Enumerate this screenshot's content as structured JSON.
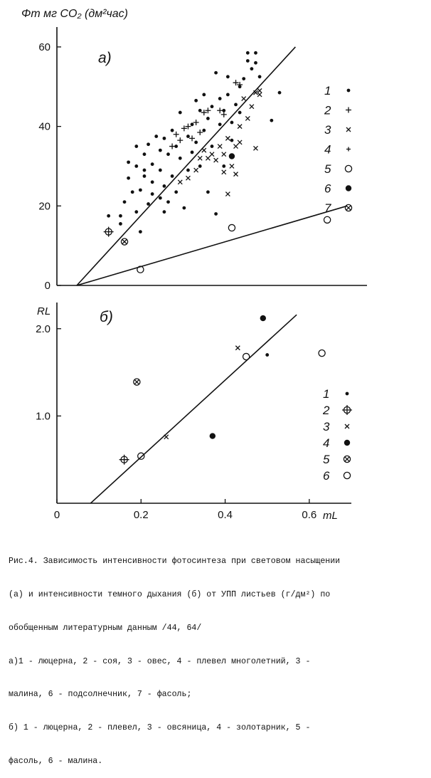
{
  "chart_data": [
    {
      "type": "scatter",
      "panel_label": "а)",
      "ylabel": "Φт мг CO₂ (дм²час)",
      "xlim": [
        0,
        0.78
      ],
      "ylim": [
        0,
        65
      ],
      "y_ticks": [
        "0",
        "20",
        "40",
        "60"
      ],
      "grid": false,
      "legend_position": "right",
      "series": [
        {
          "name": "1",
          "marker": "dot",
          "points": [
            [
              0.13,
              17.5
            ],
            [
              0.16,
              17.5
            ],
            [
              0.16,
              15.5
            ],
            [
              0.17,
              21
            ],
            [
              0.18,
              27
            ],
            [
              0.18,
              31
            ],
            [
              0.19,
              23.5
            ],
            [
              0.2,
              35
            ],
            [
              0.2,
              30
            ],
            [
              0.2,
              18.5
            ],
            [
              0.21,
              24
            ],
            [
              0.21,
              13.5
            ],
            [
              0.22,
              33
            ],
            [
              0.22,
              29
            ],
            [
              0.22,
              27.5
            ],
            [
              0.23,
              35.5
            ],
            [
              0.23,
              20.5
            ],
            [
              0.24,
              26
            ],
            [
              0.24,
              30.5
            ],
            [
              0.24,
              23
            ],
            [
              0.25,
              37.5
            ],
            [
              0.26,
              34
            ],
            [
              0.26,
              29
            ],
            [
              0.26,
              22
            ],
            [
              0.27,
              37
            ],
            [
              0.27,
              25
            ],
            [
              0.27,
              18.5
            ],
            [
              0.28,
              33
            ],
            [
              0.28,
              21
            ],
            [
              0.29,
              39
            ],
            [
              0.29,
              27.5
            ],
            [
              0.3,
              23.5
            ],
            [
              0.3,
              35
            ],
            [
              0.31,
              43.5
            ],
            [
              0.31,
              32
            ],
            [
              0.32,
              19.5
            ],
            [
              0.33,
              37.5
            ],
            [
              0.33,
              29
            ],
            [
              0.34,
              40.5
            ],
            [
              0.34,
              33.5
            ],
            [
              0.35,
              46.5
            ],
            [
              0.35,
              36
            ],
            [
              0.36,
              44
            ],
            [
              0.36,
              30
            ],
            [
              0.37,
              39
            ],
            [
              0.37,
              48
            ],
            [
              0.38,
              42
            ],
            [
              0.38,
              23.5
            ],
            [
              0.39,
              45
            ],
            [
              0.39,
              35
            ],
            [
              0.4,
              53.5
            ],
            [
              0.4,
              18
            ],
            [
              0.41,
              47
            ],
            [
              0.41,
              40.5
            ],
            [
              0.42,
              44
            ],
            [
              0.42,
              30
            ],
            [
              0.43,
              48
            ],
            [
              0.43,
              52.5
            ],
            [
              0.44,
              41
            ],
            [
              0.44,
              36.5
            ],
            [
              0.45,
              45.5
            ],
            [
              0.46,
              50
            ],
            [
              0.46,
              43.5
            ],
            [
              0.47,
              52
            ],
            [
              0.48,
              58.5
            ],
            [
              0.48,
              56.5
            ],
            [
              0.49,
              54.5
            ],
            [
              0.5,
              58.5
            ],
            [
              0.5,
              56
            ],
            [
              0.51,
              52.5
            ],
            [
              0.54,
              41.5
            ],
            [
              0.56,
              48.5
            ]
          ]
        },
        {
          "name": "2",
          "marker": "plus",
          "points": [
            [
              0.29,
              35
            ],
            [
              0.3,
              38
            ],
            [
              0.31,
              36.5
            ],
            [
              0.32,
              39.5
            ],
            [
              0.33,
              40
            ],
            [
              0.34,
              37
            ],
            [
              0.35,
              41
            ],
            [
              0.36,
              38.5
            ],
            [
              0.37,
              43.5
            ],
            [
              0.38,
              44
            ],
            [
              0.41,
              44
            ],
            [
              0.42,
              43
            ],
            [
              0.45,
              51
            ],
            [
              0.46,
              50.5
            ]
          ]
        },
        {
          "name": "3",
          "marker": "x",
          "points": [
            [
              0.31,
              26
            ],
            [
              0.33,
              27
            ],
            [
              0.35,
              29
            ],
            [
              0.36,
              32
            ],
            [
              0.37,
              34
            ],
            [
              0.38,
              32
            ],
            [
              0.39,
              33
            ],
            [
              0.4,
              31.5
            ],
            [
              0.41,
              35
            ],
            [
              0.42,
              28.5
            ],
            [
              0.42,
              33
            ],
            [
              0.43,
              37
            ],
            [
              0.44,
              30
            ],
            [
              0.45,
              28
            ],
            [
              0.45,
              35
            ],
            [
              0.46,
              36
            ],
            [
              0.47,
              47
            ],
            [
              0.48,
              42
            ],
            [
              0.49,
              45
            ],
            [
              0.5,
              48.5
            ],
            [
              0.51,
              49
            ],
            [
              0.51,
              48
            ],
            [
              0.43,
              23
            ],
            [
              0.46,
              40
            ],
            [
              0.5,
              34.5
            ]
          ]
        },
        {
          "name": "4",
          "marker": "cross-small",
          "points": []
        },
        {
          "name": "5",
          "marker": "open-circle",
          "points": [
            [
              0.21,
              4
            ],
            [
              0.44,
              14.5
            ],
            [
              0.68,
              16.5
            ]
          ]
        },
        {
          "name": "6",
          "marker": "filled-circle",
          "points": [
            [
              0.44,
              32.5
            ]
          ]
        },
        {
          "name": "7",
          "marker": "circle-x",
          "points": [
            [
              0.17,
              11
            ]
          ]
        },
        {
          "name": "",
          "marker": "circle-plus",
          "points": [
            [
              0.13,
              13.5
            ]
          ]
        }
      ],
      "lines": [
        {
          "from": [
            0.05,
            0
          ],
          "to": [
            0.6,
            60
          ]
        },
        {
          "from": [
            0.05,
            0
          ],
          "to": [
            0.73,
            20
          ]
        }
      ]
    },
    {
      "type": "scatter",
      "panel_label": "б)",
      "ylabel": "RL",
      "xlabel": "mL",
      "xlim": [
        0,
        0.7
      ],
      "ylim": [
        0,
        2.3
      ],
      "x_ticks": [
        "0",
        "0.2",
        "0.4",
        "0.6"
      ],
      "y_ticks": [
        "1.0",
        "2.0"
      ],
      "grid": false,
      "legend_position": "right",
      "series": [
        {
          "name": "1",
          "marker": "dot",
          "points": [
            [
              0.5,
              1.7
            ]
          ]
        },
        {
          "name": "2",
          "marker": "circle-plus",
          "points": [
            [
              0.16,
              0.5
            ]
          ]
        },
        {
          "name": "3",
          "marker": "x",
          "points": [
            [
              0.26,
              0.76
            ],
            [
              0.43,
              1.78
            ]
          ]
        },
        {
          "name": "4",
          "marker": "filled-circle",
          "points": [
            [
              0.37,
              0.77
            ],
            [
              0.49,
              2.12
            ]
          ]
        },
        {
          "name": "5",
          "marker": "circle-x",
          "points": [
            [
              0.19,
              1.39
            ]
          ]
        },
        {
          "name": "6",
          "marker": "open-circle",
          "points": [
            [
              0.2,
              0.54
            ],
            [
              0.45,
              1.68
            ],
            [
              0.63,
              1.72
            ]
          ]
        }
      ],
      "lines": [
        {
          "from": [
            0.08,
            0
          ],
          "to": [
            0.57,
            2.16
          ]
        }
      ]
    }
  ],
  "caption": {
    "line1": "Рис.4. Зависимость интенсивности фотосинтеза при световом насыщении",
    "line2": "(а) и интенсивности темного дыхания (б) от УПП листьев (г/дм²) по",
    "line3": "обобщенным литературным данным /44, 64/",
    "line4": "а)1 - люцерна, 2 - соя, 3 - овес, 4 - плевел многолетний, 3 -",
    "line5": "малина, 6 - подсолнечник, 7 - фасоль;",
    "line6": "б) 1 - люцерна, 2 - плевел, 3 - овсяница, 4 - золотарник, 5 -",
    "line7": "фасоль, 6 - малина."
  }
}
